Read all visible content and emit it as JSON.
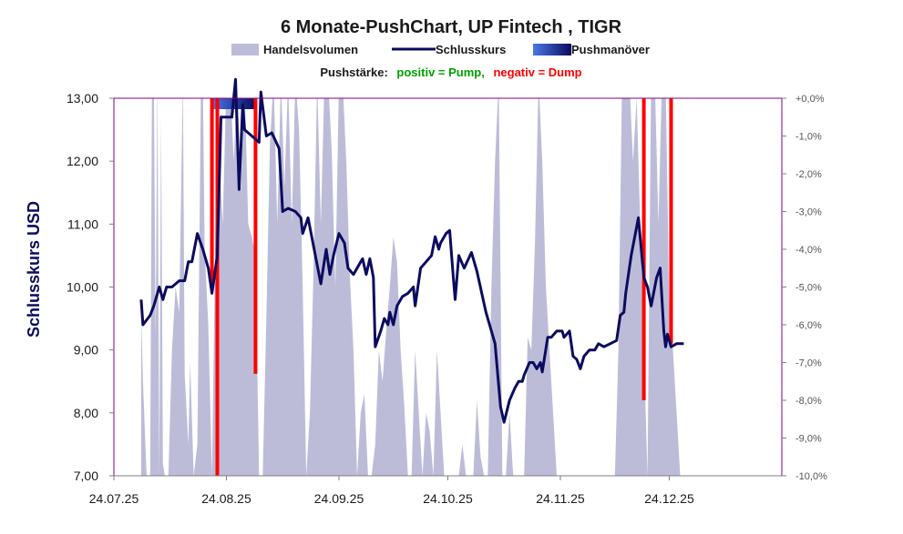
{
  "chart_data": {
    "type": "line",
    "title": "6 Monate-PushChart, UP Fintech , TIGR",
    "legend": {
      "volume_label": "Handelsvolumen",
      "close_label": "Schlusskurs",
      "push_label": "Pushmanöver"
    },
    "push_legend": {
      "prefix": "Pushstärke:",
      "positive": "positiv = Pump,",
      "negative": "negativ = Dump"
    },
    "ylabel": "Schlusskurs USD",
    "ylim": [
      7.0,
      13.0
    ],
    "yticks": [
      "7,00",
      "8,00",
      "9,00",
      "10,00",
      "11,00",
      "12,00",
      "13,00"
    ],
    "y2lim": [
      -10.0,
      0.0
    ],
    "y2ticks": [
      "-10,0%",
      "-9,0%",
      "-8,0%",
      "-7,0%",
      "-6,0%",
      "-5,0%",
      "-4,0%",
      "-3,0%",
      "-2,0%",
      "-1,0%",
      "+0,0%"
    ],
    "xticks": [
      {
        "label": "24.07.25",
        "day": 0
      },
      {
        "label": "24.08.25",
        "day": 31
      },
      {
        "label": "24.09.25",
        "day": 62
      },
      {
        "label": "24.10.25",
        "day": 92
      },
      {
        "label": "24.11.25",
        "day": 123
      },
      {
        "label": "24.12.25",
        "day": 153
      }
    ],
    "xlim": [
      0,
      184
    ],
    "close_series": [
      [
        7.5,
        9.8
      ],
      [
        8,
        9.4
      ],
      [
        10,
        9.55
      ],
      [
        11,
        9.7
      ],
      [
        12.5,
        10.0
      ],
      [
        13.5,
        9.8
      ],
      [
        14.5,
        10.0
      ],
      [
        16,
        10.0
      ],
      [
        18,
        10.1
      ],
      [
        19.5,
        10.1
      ],
      [
        20.5,
        10.4
      ],
      [
        21.5,
        10.4
      ],
      [
        23,
        10.85
      ],
      [
        24.5,
        10.6
      ],
      [
        26,
        10.3
      ],
      [
        27,
        9.9
      ],
      [
        28.5,
        10.5
      ],
      [
        29.5,
        12.7
      ],
      [
        31,
        12.7
      ],
      [
        32.5,
        12.7
      ],
      [
        33.5,
        13.3
      ],
      [
        34.5,
        11.55
      ],
      [
        35.5,
        12.9
      ],
      [
        36,
        12.5
      ],
      [
        38,
        12.4
      ],
      [
        40,
        12.3
      ],
      [
        40.5,
        13.1
      ],
      [
        42,
        12.4
      ],
      [
        43.5,
        12.45
      ],
      [
        45.5,
        12.2
      ],
      [
        46.5,
        11.2
      ],
      [
        48,
        11.25
      ],
      [
        50,
        11.2
      ],
      [
        51.5,
        11.1
      ],
      [
        52,
        10.85
      ],
      [
        53.5,
        11.1
      ],
      [
        55,
        10.65
      ],
      [
        56.5,
        10.2
      ],
      [
        57,
        10.05
      ],
      [
        58.5,
        10.6
      ],
      [
        59.5,
        10.2
      ],
      [
        60.5,
        10.5
      ],
      [
        62,
        10.85
      ],
      [
        63.5,
        10.7
      ],
      [
        64.5,
        10.3
      ],
      [
        66,
        10.2
      ],
      [
        67.5,
        10.35
      ],
      [
        68.5,
        10.45
      ],
      [
        69.5,
        10.2
      ],
      [
        70.5,
        10.45
      ],
      [
        71.5,
        10.15
      ],
      [
        72,
        9.05
      ],
      [
        73.5,
        9.3
      ],
      [
        74.5,
        9.5
      ],
      [
        75.5,
        9.4
      ],
      [
        76,
        9.6
      ],
      [
        77,
        9.4
      ],
      [
        78,
        9.7
      ],
      [
        79.5,
        9.85
      ],
      [
        81,
        9.9
      ],
      [
        82.5,
        10.0
      ],
      [
        83,
        9.7
      ],
      [
        84.5,
        10.3
      ],
      [
        86,
        10.4
      ],
      [
        87.5,
        10.5
      ],
      [
        88.5,
        10.8
      ],
      [
        89.5,
        10.6
      ],
      [
        90,
        10.7
      ],
      [
        91.5,
        10.85
      ],
      [
        92.5,
        10.9
      ],
      [
        93.5,
        10.15
      ],
      [
        94,
        9.8
      ],
      [
        95,
        10.5
      ],
      [
        96.5,
        10.3
      ],
      [
        98.5,
        10.55
      ],
      [
        100,
        10.25
      ],
      [
        102.5,
        9.6
      ],
      [
        103.5,
        9.4
      ],
      [
        105,
        9.1
      ],
      [
        106.5,
        8.1
      ],
      [
        107.5,
        7.85
      ],
      [
        109,
        8.2
      ],
      [
        110.5,
        8.4
      ],
      [
        111.5,
        8.5
      ],
      [
        112.5,
        8.5
      ],
      [
        113,
        8.6
      ],
      [
        114.5,
        8.8
      ],
      [
        115.5,
        8.8
      ],
      [
        116.5,
        8.7
      ],
      [
        117.5,
        8.8
      ],
      [
        118,
        8.65
      ],
      [
        119.5,
        9.2
      ],
      [
        120.5,
        9.2
      ],
      [
        122,
        9.3
      ],
      [
        123.5,
        9.3
      ],
      [
        124,
        9.2
      ],
      [
        125.5,
        9.3
      ],
      [
        126.5,
        8.9
      ],
      [
        127.5,
        8.85
      ],
      [
        128.5,
        8.7
      ],
      [
        129.5,
        8.9
      ],
      [
        131,
        9.0
      ],
      [
        132.5,
        9.0
      ],
      [
        133.5,
        9.1
      ],
      [
        135,
        9.05
      ],
      [
        138.5,
        9.15
      ],
      [
        139.5,
        9.55
      ],
      [
        140.5,
        9.6
      ],
      [
        141,
        9.9
      ],
      [
        142.5,
        10.5
      ],
      [
        144.5,
        11.1
      ],
      [
        146,
        10.15
      ],
      [
        147,
        10.0
      ],
      [
        148,
        9.7
      ],
      [
        149.5,
        10.15
      ],
      [
        150.5,
        10.3
      ],
      [
        151.5,
        9.3
      ],
      [
        152,
        9.05
      ],
      [
        152.5,
        9.25
      ],
      [
        153.5,
        9.05
      ],
      [
        155,
        9.1
      ],
      [
        157,
        9.1
      ]
    ],
    "volume_series": [
      [
        7.5,
        9.6
      ],
      [
        8,
        8.5
      ],
      [
        9,
        7.0
      ],
      [
        10,
        7.0
      ],
      [
        10.5,
        13.3
      ],
      [
        11,
        13.3
      ],
      [
        11.5,
        9.2
      ],
      [
        12,
        13.3
      ],
      [
        12.5,
        7.0
      ],
      [
        13,
        12.7
      ],
      [
        13.5,
        7.2
      ],
      [
        14,
        7.0
      ],
      [
        15,
        7.0
      ],
      [
        16,
        9.0
      ],
      [
        17,
        10.0
      ],
      [
        18,
        9.6
      ],
      [
        19,
        13.3
      ],
      [
        19.5,
        8.6
      ],
      [
        20.5,
        7.5
      ],
      [
        21,
        8.8
      ],
      [
        22,
        7.0
      ],
      [
        23,
        7.5
      ],
      [
        24,
        13.3
      ],
      [
        24.5,
        13.3
      ],
      [
        25,
        10.6
      ],
      [
        26,
        9.4
      ],
      [
        27,
        7.0
      ],
      [
        28,
        11.0
      ],
      [
        29,
        12.0
      ],
      [
        30,
        11.0
      ],
      [
        31,
        13.3
      ],
      [
        32,
        13.3
      ],
      [
        33,
        12.0
      ],
      [
        34,
        13.3
      ],
      [
        35,
        11.5
      ],
      [
        36,
        13.3
      ],
      [
        37,
        11.0
      ],
      [
        38,
        10.8
      ],
      [
        39,
        10.5
      ],
      [
        40,
        7.0
      ],
      [
        41,
        7.0
      ],
      [
        42,
        9.5
      ],
      [
        43,
        12.3
      ],
      [
        44,
        13.3
      ],
      [
        45,
        11.0
      ],
      [
        46,
        13.3
      ],
      [
        47,
        11.6
      ],
      [
        48,
        13.3
      ],
      [
        49,
        11.0
      ],
      [
        50,
        13.3
      ],
      [
        51,
        12.5
      ],
      [
        52,
        10.0
      ],
      [
        53,
        7.0
      ],
      [
        54,
        8.0
      ],
      [
        55,
        10.3
      ],
      [
        56,
        13.3
      ],
      [
        57,
        11.0
      ],
      [
        58,
        13.3
      ],
      [
        59,
        13.3
      ],
      [
        60,
        12.2
      ],
      [
        61,
        10.0
      ],
      [
        62,
        13.3
      ],
      [
        63,
        13.3
      ],
      [
        64,
        12.0
      ],
      [
        65,
        10.2
      ],
      [
        66,
        9.0
      ],
      [
        67,
        7.0
      ],
      [
        68,
        8.0
      ],
      [
        69,
        8.3
      ],
      [
        70,
        7.0
      ],
      [
        71,
        7.0
      ],
      [
        72,
        7.5
      ],
      [
        73,
        9.0
      ],
      [
        74,
        8.5
      ],
      [
        75,
        9.3
      ],
      [
        76,
        10.0
      ],
      [
        77,
        10.8
      ],
      [
        78,
        10.4
      ],
      [
        79,
        9.0
      ],
      [
        80,
        8.1
      ],
      [
        81,
        7.0
      ],
      [
        82,
        7.0
      ],
      [
        83,
        9.0
      ],
      [
        84,
        8.0
      ],
      [
        85,
        7.0
      ],
      [
        86,
        8.0
      ],
      [
        87,
        7.7
      ],
      [
        88,
        7.0
      ],
      [
        89,
        9.0
      ],
      [
        90,
        8.0
      ],
      [
        91,
        7.0
      ],
      [
        92,
        7.0
      ],
      [
        93,
        7.0
      ],
      [
        94,
        7.0
      ],
      [
        95,
        7.0
      ],
      [
        96,
        7.5
      ],
      [
        97,
        7.0
      ],
      [
        98,
        7.0
      ],
      [
        99,
        7.0
      ],
      [
        100,
        8.2
      ],
      [
        101,
        7.3
      ],
      [
        102,
        7.0
      ],
      [
        103,
        7.0
      ],
      [
        104,
        10.0
      ],
      [
        105,
        12.0
      ],
      [
        106,
        13.3
      ],
      [
        107,
        7.0
      ],
      [
        108,
        7.0
      ],
      [
        109,
        8.0
      ],
      [
        110,
        7.0
      ],
      [
        111,
        7.0
      ],
      [
        112,
        7.0
      ],
      [
        113,
        7.0
      ],
      [
        114,
        9.2
      ],
      [
        115,
        9.0
      ],
      [
        116,
        10.7
      ],
      [
        117,
        13.3
      ],
      [
        118,
        12.0
      ],
      [
        119,
        10.0
      ],
      [
        120,
        9.0
      ],
      [
        121,
        8.0
      ],
      [
        122,
        7.0
      ],
      [
        123,
        7.0
      ],
      [
        124,
        7.0
      ],
      [
        125,
        7.0
      ],
      [
        126,
        7.0
      ],
      [
        127,
        7.0
      ],
      [
        128,
        7.0
      ],
      [
        129,
        7.0
      ],
      [
        130,
        7.0
      ],
      [
        131,
        7.0
      ],
      [
        132,
        7.0
      ],
      [
        133,
        7.0
      ],
      [
        134,
        7.0
      ],
      [
        135,
        7.0
      ],
      [
        136,
        7.0
      ],
      [
        137,
        7.0
      ],
      [
        138,
        7.0
      ],
      [
        139,
        9.0
      ],
      [
        140,
        13.3
      ],
      [
        141,
        13.3
      ],
      [
        142,
        13.3
      ],
      [
        143,
        12.0
      ],
      [
        144,
        13.0
      ],
      [
        145,
        11.0
      ],
      [
        146,
        9.0
      ],
      [
        147,
        7.0
      ],
      [
        148,
        13.3
      ],
      [
        149,
        13.3
      ],
      [
        150,
        11.0
      ],
      [
        151,
        13.3
      ],
      [
        152,
        13.3
      ],
      [
        153,
        9.6
      ],
      [
        154,
        9.0
      ],
      [
        155,
        8.0
      ],
      [
        156,
        7.0
      ],
      [
        157,
        7.0
      ]
    ],
    "push_bands": [
      {
        "start_day": 27,
        "end_day": 39
      }
    ],
    "push_bars_percent": [
      {
        "day": 27,
        "value": -5.1
      },
      {
        "day": 28.5,
        "value": -10.0
      },
      {
        "day": 39,
        "value": -7.3
      },
      {
        "day": 146,
        "value": -8.0
      },
      {
        "day": 153.5,
        "value": -6.5
      }
    ],
    "colors": {
      "close": "#0b0b5e",
      "volume": "#bcbcd9",
      "push_bar": "#ff0000",
      "push_band_start": "#4a78e8",
      "push_band_end": "#0b0b5e",
      "plot_border": "#800080",
      "positive": "#00a000",
      "negative": "#ff0000",
      "ylabel": "#0b0b5e"
    }
  }
}
